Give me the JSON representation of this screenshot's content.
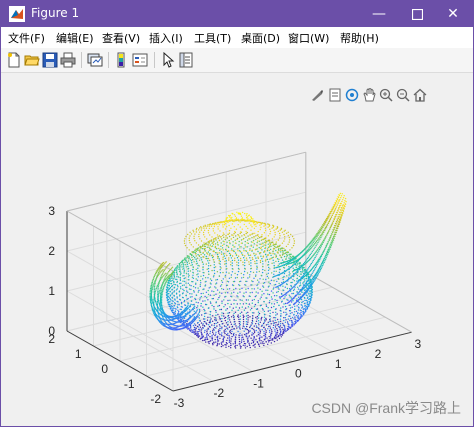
{
  "window": {
    "title": "Figure 1"
  },
  "menu": [
    {
      "label": "文件(F)",
      "name": "menu-file"
    },
    {
      "label": "编辑(E)",
      "name": "menu-edit"
    },
    {
      "label": "查看(V)",
      "name": "menu-view"
    },
    {
      "label": "插入(I)",
      "name": "menu-insert"
    },
    {
      "label": "工具(T)",
      "name": "menu-tools"
    },
    {
      "label": "桌面(D)",
      "name": "menu-desktop"
    },
    {
      "label": "窗口(W)",
      "name": "menu-window"
    },
    {
      "label": "帮助(H)",
      "name": "menu-help"
    }
  ],
  "toolbar_icons": [
    "new-figure-icon",
    "open-file-icon",
    "save-icon",
    "print-icon",
    "link-plot-icon",
    "insert-colorbar-icon",
    "insert-legend-icon",
    "select-arrow-icon",
    "property-inspector-icon"
  ],
  "axes_toolbar_icons": [
    "brush-icon",
    "datatip-icon",
    "rotate-3d-icon",
    "pan-icon",
    "zoom-in-icon",
    "zoom-out-icon",
    "home-icon"
  ],
  "axes": {
    "z_ticks": [
      "0",
      "1",
      "2",
      "3"
    ],
    "y_ticks": [
      "2",
      "1",
      "0",
      "-1",
      "-2"
    ],
    "x_ticks": [
      "-3",
      "-2",
      "-1",
      "0",
      "1",
      "2",
      "3"
    ]
  },
  "colors": {
    "titlebar": "#6b4fa8",
    "teapot_low": "#3b1fa8",
    "teapot_mid": "#1fa3a3",
    "teapot_high": "#f5e61a"
  },
  "watermark": "CSDN @Frank学习路上"
}
